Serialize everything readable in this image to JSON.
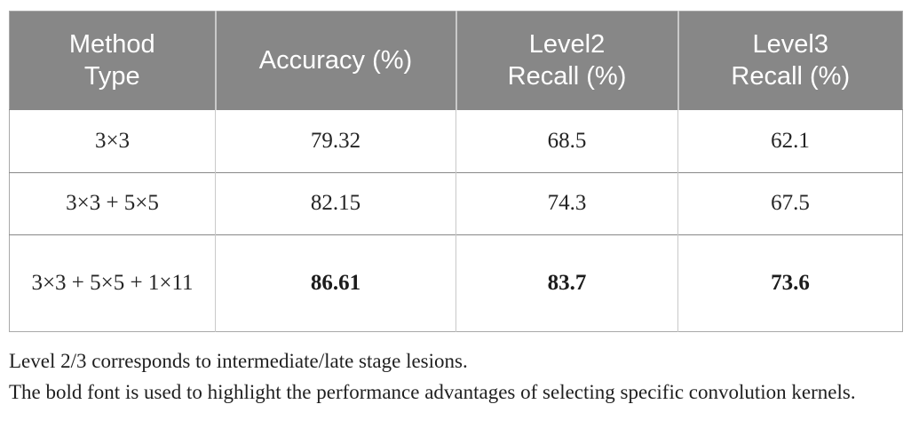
{
  "table": {
    "columns": [
      {
        "key": "method",
        "label": "Method\nType"
      },
      {
        "key": "accuracy",
        "label": "Accuracy (%)"
      },
      {
        "key": "level2",
        "label": "Level2\nRecall (%)"
      },
      {
        "key": "level3",
        "label": "Level3\nRecall (%)"
      }
    ],
    "rows": [
      {
        "method": "3×3",
        "accuracy": "79.32",
        "level2": "68.5",
        "level3": "62.1",
        "bold_metrics": false
      },
      {
        "method": "3×3 + 5×5",
        "accuracy": "82.15",
        "level2": "74.3",
        "level3": "67.5",
        "bold_metrics": false
      },
      {
        "method": "3×3 + 5×5 + 1×11",
        "accuracy": "86.61",
        "level2": "83.7",
        "level3": "73.6",
        "bold_metrics": true
      }
    ]
  },
  "footnotes": [
    "Level 2/3 corresponds to intermediate/late stage lesions.",
    "The bold font is used to highlight the performance advantages of selecting specific convolution kernels."
  ],
  "colors": {
    "header_bg": "#878787",
    "header_text": "#ffffff",
    "body_text": "#242424",
    "row_line": "#888888",
    "column_line": "#c9c9c9",
    "outer_border": "#a9a9a9"
  }
}
